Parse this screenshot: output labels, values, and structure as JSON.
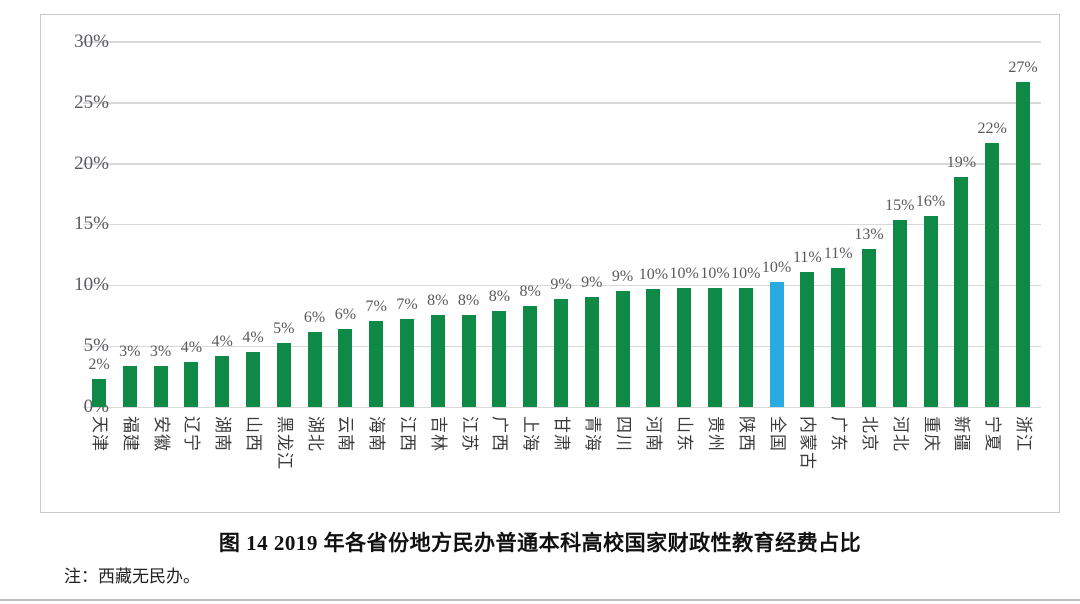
{
  "chart_data": {
    "type": "bar",
    "title": "图 14  2019 年各省份地方民办普通本科高校国家财政性教育经费占比",
    "note": "注：西藏无民办。",
    "ylim": [
      0,
      30
    ],
    "yticks": [
      0,
      5,
      10,
      15,
      20,
      25,
      30
    ],
    "ytick_labels": [
      "0%",
      "5%",
      "10%",
      "15%",
      "20%",
      "25%",
      "30%"
    ],
    "grid": true,
    "legend": "none",
    "bar_color": "#0f8a46",
    "highlight_color": "#29abe2",
    "highlight_category": "全国",
    "categories": [
      "天津",
      "福建",
      "安徽",
      "辽宁",
      "湖南",
      "山西",
      "黑龙江",
      "湖北",
      "云南",
      "海南",
      "江西",
      "吉林",
      "江苏",
      "广西",
      "上海",
      "甘肃",
      "青海",
      "四川",
      "河南",
      "山东",
      "贵州",
      "陕西",
      "全国",
      "内蒙古",
      "广东",
      "北京",
      "河北",
      "重庆",
      "新疆",
      "宁夏",
      "浙江"
    ],
    "labels": [
      "2%",
      "3%",
      "3%",
      "4%",
      "4%",
      "4%",
      "5%",
      "6%",
      "6%",
      "7%",
      "7%",
      "8%",
      "8%",
      "8%",
      "8%",
      "9%",
      "9%",
      "9%",
      "10%",
      "10%",
      "10%",
      "10%",
      "10%",
      "11%",
      "11%",
      "13%",
      "15%",
      "16%",
      "19%",
      "22%",
      "27%"
    ],
    "values": [
      2.3,
      3.4,
      3.4,
      3.7,
      4.2,
      4.5,
      5.3,
      6.2,
      6.4,
      7.1,
      7.2,
      7.6,
      7.6,
      7.9,
      8.3,
      8.9,
      9.0,
      9.5,
      9.7,
      9.8,
      9.8,
      9.8,
      10.3,
      11.1,
      11.4,
      13.0,
      15.4,
      15.7,
      18.9,
      21.7,
      26.7
    ]
  }
}
